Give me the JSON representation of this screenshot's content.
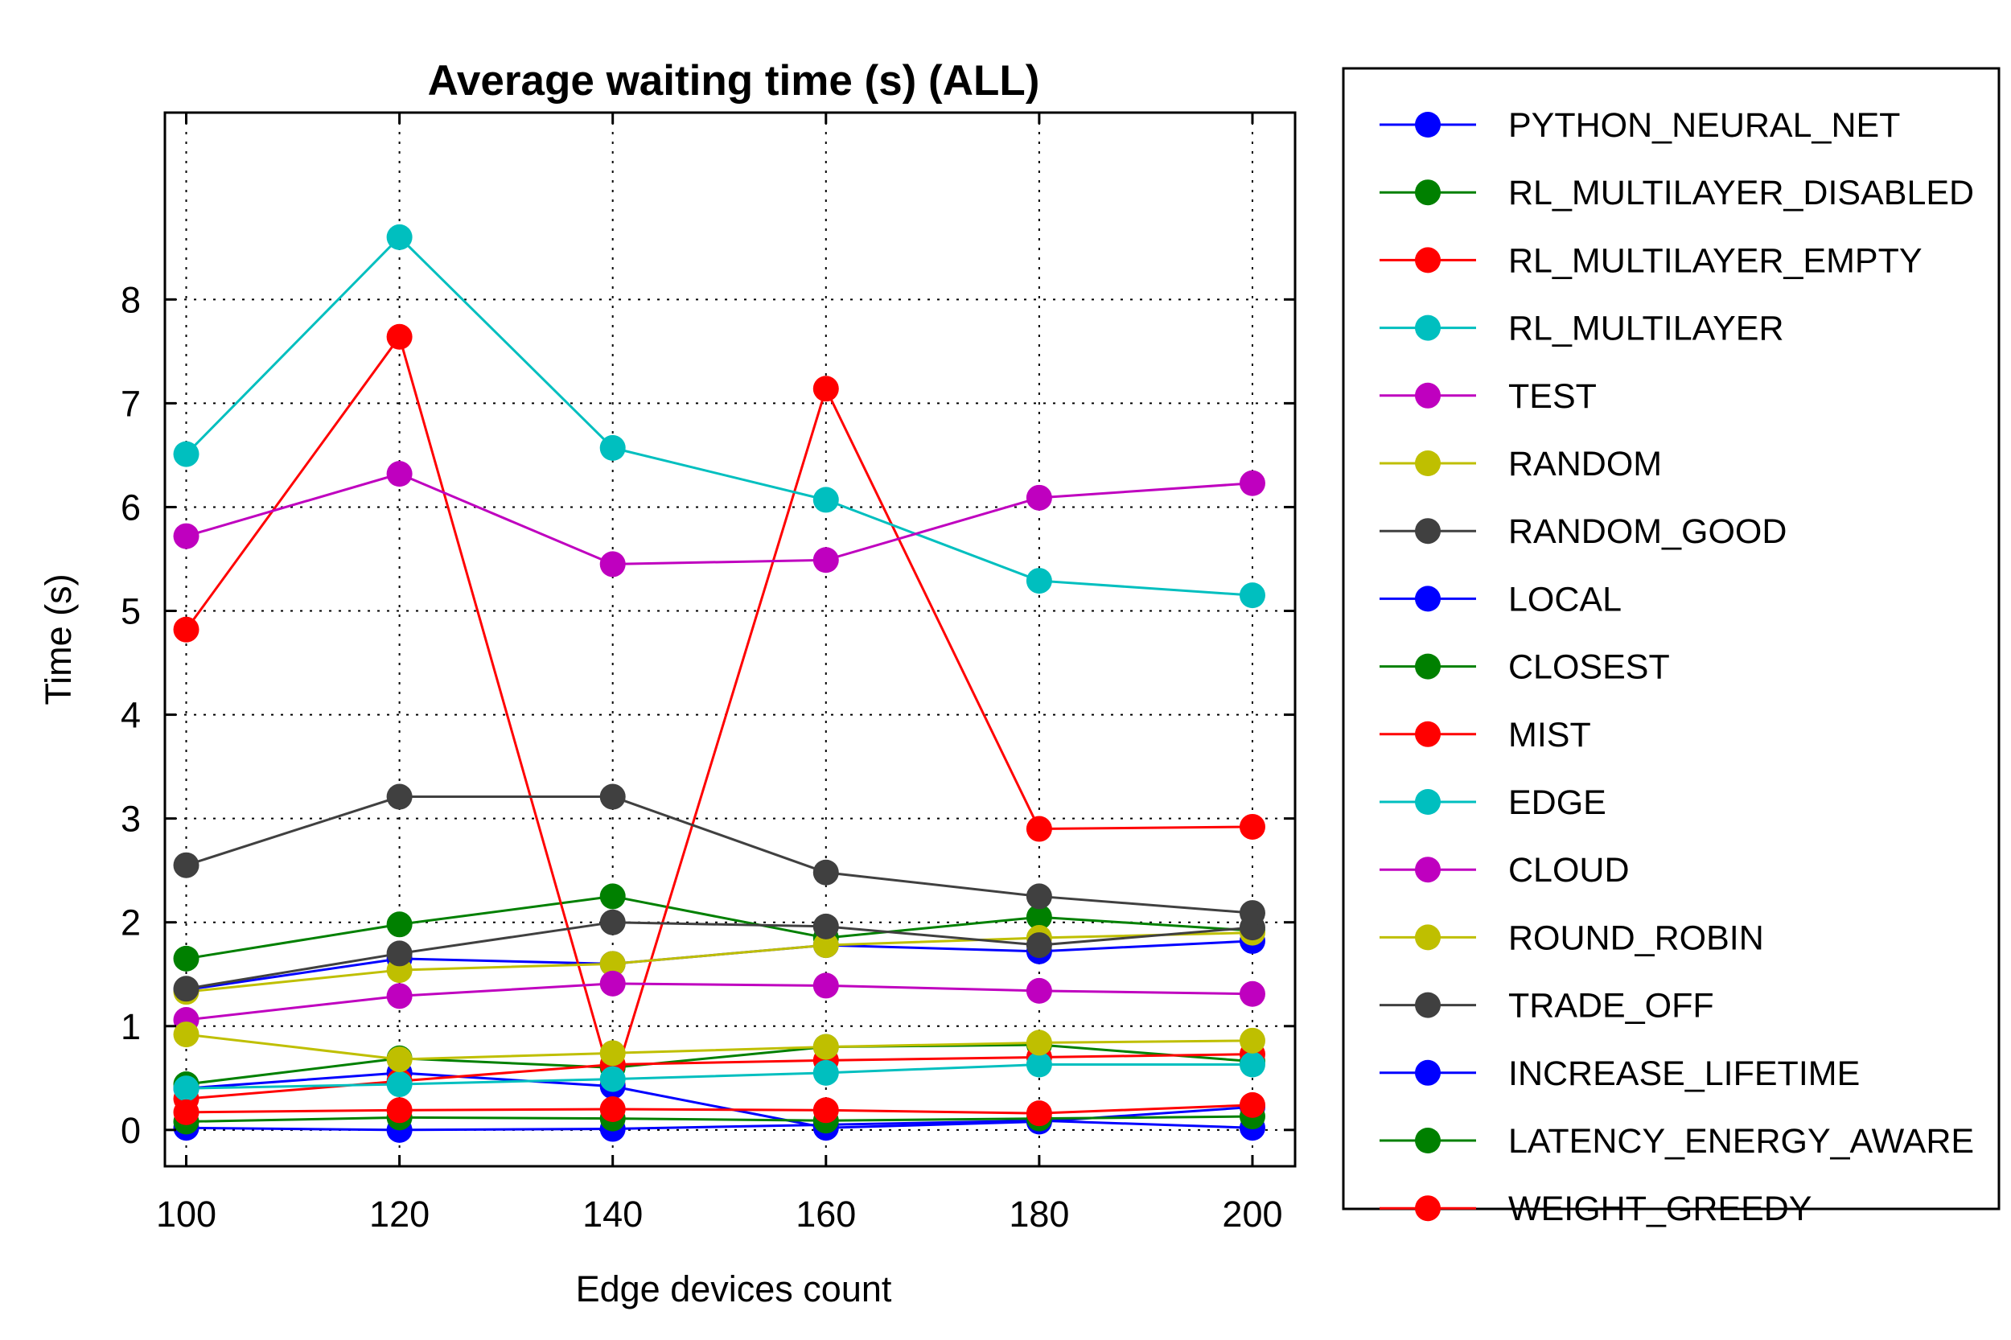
{
  "chart_data": {
    "type": "line",
    "title": "Average waiting time (s) (ALL)",
    "xlabel": "Edge devices count",
    "ylabel": "Time (s)",
    "x": [
      100,
      120,
      140,
      160,
      180,
      200
    ],
    "xlim": [
      98,
      204
    ],
    "ylim": [
      -0.35,
      9.8
    ],
    "xticks": [
      100,
      120,
      140,
      160,
      180,
      200
    ],
    "yticks": [
      0,
      1,
      2,
      3,
      4,
      5,
      6,
      7,
      8
    ],
    "grid": true,
    "legend_position": "right",
    "series": [
      {
        "name": "PYTHON_NEURAL_NET",
        "color": "#0000ff",
        "values": [
          1.35,
          1.65,
          1.6,
          1.78,
          1.72,
          1.82
        ]
      },
      {
        "name": "RL_MULTILAYER_DISABLED",
        "color": "#008000",
        "values": [
          1.65,
          1.98,
          2.25,
          1.85,
          2.05,
          1.92
        ]
      },
      {
        "name": "RL_MULTILAYER_EMPTY",
        "color": "#ff0000",
        "values": [
          4.82,
          7.64,
          0.43,
          7.14,
          2.9,
          2.92
        ]
      },
      {
        "name": "RL_MULTILAYER",
        "color": "#00bfbf",
        "values": [
          6.51,
          8.6,
          6.57,
          6.07,
          5.29,
          5.15
        ]
      },
      {
        "name": "TEST",
        "color": "#bf00bf",
        "values": [
          5.72,
          6.32,
          5.45,
          5.49,
          6.09,
          6.23
        ]
      },
      {
        "name": "RANDOM",
        "color": "#bfbf00",
        "values": [
          1.33,
          1.54,
          1.6,
          1.78,
          1.85,
          1.9
        ]
      },
      {
        "name": "RANDOM_GOOD",
        "color": "#404040",
        "values": [
          1.36,
          1.7,
          2.0,
          1.96,
          1.78,
          1.95
        ]
      },
      {
        "name": "LOCAL",
        "color": "#0000ff",
        "values": [
          0.4,
          0.55,
          0.42,
          0.02,
          0.08,
          0.22
        ]
      },
      {
        "name": "CLOSEST",
        "color": "#008000",
        "values": [
          0.44,
          0.69,
          0.6,
          0.8,
          0.82,
          0.66
        ]
      },
      {
        "name": "MIST",
        "color": "#ff0000",
        "values": [
          0.3,
          0.47,
          0.63,
          0.67,
          0.7,
          0.73
        ]
      },
      {
        "name": "EDGE",
        "color": "#00bfbf",
        "values": [
          0.4,
          0.44,
          0.49,
          0.55,
          0.63,
          0.63
        ]
      },
      {
        "name": "CLOUD",
        "color": "#bf00bf",
        "values": [
          1.06,
          1.29,
          1.41,
          1.39,
          1.34,
          1.31
        ]
      },
      {
        "name": "ROUND_ROBIN",
        "color": "#bfbf00",
        "values": [
          0.92,
          0.68,
          0.74,
          0.8,
          0.84,
          0.86
        ]
      },
      {
        "name": "TRADE_OFF",
        "color": "#404040",
        "values": [
          2.55,
          3.21,
          3.21,
          2.48,
          2.25,
          2.09
        ]
      },
      {
        "name": "INCREASE_LIFETIME",
        "color": "#0000ff",
        "values": [
          0.02,
          0.0,
          0.01,
          0.05,
          0.09,
          0.02
        ]
      },
      {
        "name": "LATENCY_ENERGY_AWARE",
        "color": "#008000",
        "values": [
          0.08,
          0.12,
          0.11,
          0.09,
          0.11,
          0.13
        ]
      },
      {
        "name": "WEIGHT_GREEDY",
        "color": "#ff0000",
        "values": [
          0.17,
          0.19,
          0.2,
          0.19,
          0.16,
          0.24
        ]
      }
    ]
  }
}
